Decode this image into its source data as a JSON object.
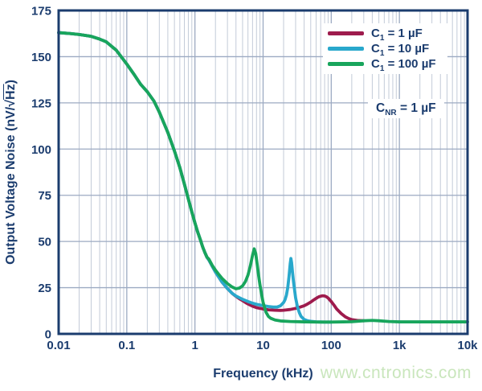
{
  "figure": {
    "background": "#ffffff",
    "frame_color": "#1b3c6e",
    "text_color": "#1b3c6e",
    "grid_major_color": "#9caac2",
    "grid_minor_color": "#c3cbd8"
  },
  "labels": {
    "y_pre": "Output Voltage Noise (nV/√",
    "y_ol": "Hz",
    "y_post": ")"
  },
  "legend": {
    "items": [
      {
        "sym": "C",
        "sub": "1",
        "rest": " = 1 µF",
        "color": "#9e1b4d"
      },
      {
        "sym": "C",
        "sub": "1",
        "rest": " = 10 µF",
        "color": "#29a8cc"
      },
      {
        "sym": "C",
        "sub": "1",
        "rest": " = 100 µF",
        "color": "#18a55c"
      }
    ]
  },
  "annotation": {
    "sym": "C",
    "sub": "NR",
    "rest": " = 1 µF"
  },
  "watermark": "www.cntronics.com",
  "chart_data": {
    "type": "line",
    "title": "",
    "xlabel": "Frequency (kHz)",
    "ylabel": "Output Voltage Noise (nV/√Hz)",
    "x_scale": "log",
    "xlim": [
      0.01,
      10000
    ],
    "ylim": [
      0,
      175
    ],
    "x_ticks": [
      "0.01",
      "0.1",
      "1",
      "10",
      "100",
      "1k",
      "10k"
    ],
    "x_tick_values": [
      0.01,
      0.1,
      1,
      10,
      100,
      1000,
      10000
    ],
    "y_ticks": [
      0,
      25,
      50,
      75,
      100,
      125,
      150,
      175
    ],
    "grid": true,
    "legend_position": "top-right",
    "series": [
      {
        "name": "C1 = 1 µF",
        "color": "#9e1b4d",
        "points": [
          [
            0.01,
            163
          ],
          [
            0.015,
            162.5
          ],
          [
            0.02,
            162
          ],
          [
            0.03,
            161
          ],
          [
            0.04,
            159.5
          ],
          [
            0.05,
            158
          ],
          [
            0.07,
            153.5
          ],
          [
            0.1,
            146
          ],
          [
            0.13,
            140
          ],
          [
            0.16,
            135
          ],
          [
            0.2,
            131
          ],
          [
            0.25,
            126
          ],
          [
            0.3,
            120
          ],
          [
            0.4,
            109
          ],
          [
            0.5,
            99
          ],
          [
            0.6,
            90
          ],
          [
            0.7,
            81
          ],
          [
            0.8,
            73
          ],
          [
            0.9,
            66
          ],
          [
            1,
            60
          ],
          [
            1.1,
            55
          ],
          [
            1.2,
            51
          ],
          [
            1.3,
            47
          ],
          [
            1.4,
            44
          ],
          [
            1.5,
            41.5
          ],
          [
            1.6,
            40
          ],
          [
            1.8,
            36.5
          ],
          [
            2,
            33.5
          ],
          [
            2.5,
            28
          ],
          [
            3,
            24.5
          ],
          [
            3.5,
            22
          ],
          [
            4,
            20.3
          ],
          [
            4.5,
            19
          ],
          [
            5,
            18
          ],
          [
            5.5,
            17
          ],
          [
            6,
            16.2
          ],
          [
            7,
            15
          ],
          [
            8,
            14.2
          ],
          [
            9,
            13.8
          ],
          [
            10,
            13.5
          ],
          [
            12,
            13
          ],
          [
            15,
            12.8
          ],
          [
            18,
            12.7
          ],
          [
            20,
            12.8
          ],
          [
            25,
            13.2
          ],
          [
            30,
            13.8
          ],
          [
            35,
            14.5
          ],
          [
            40,
            15.2
          ],
          [
            45,
            16.2
          ],
          [
            50,
            17.2
          ],
          [
            55,
            18.3
          ],
          [
            60,
            19.2
          ],
          [
            65,
            20
          ],
          [
            70,
            20.4
          ],
          [
            75,
            20.6
          ],
          [
            80,
            20.5
          ],
          [
            85,
            20.1
          ],
          [
            90,
            19.4
          ],
          [
            100,
            17.5
          ],
          [
            110,
            15.5
          ],
          [
            120,
            13.5
          ],
          [
            140,
            11
          ],
          [
            160,
            9.3
          ],
          [
            180,
            8.3
          ],
          [
            200,
            7.7
          ],
          [
            250,
            7.2
          ],
          [
            300,
            7.1
          ]
        ]
      },
      {
        "name": "C1 = 10 µF",
        "color": "#29a8cc",
        "points": [
          [
            0.01,
            163
          ],
          [
            0.015,
            162.5
          ],
          [
            0.02,
            162
          ],
          [
            0.03,
            161
          ],
          [
            0.04,
            159.5
          ],
          [
            0.05,
            158
          ],
          [
            0.07,
            153.5
          ],
          [
            0.1,
            146
          ],
          [
            0.13,
            140
          ],
          [
            0.16,
            135
          ],
          [
            0.2,
            131
          ],
          [
            0.25,
            126
          ],
          [
            0.3,
            120
          ],
          [
            0.4,
            109
          ],
          [
            0.5,
            99
          ],
          [
            0.6,
            90
          ],
          [
            0.7,
            81
          ],
          [
            0.8,
            73
          ],
          [
            0.9,
            66
          ],
          [
            1,
            60
          ],
          [
            1.1,
            55
          ],
          [
            1.2,
            51
          ],
          [
            1.3,
            47
          ],
          [
            1.4,
            44
          ],
          [
            1.5,
            41.5
          ],
          [
            1.6,
            40
          ],
          [
            1.8,
            36.5
          ],
          [
            2,
            33.5
          ],
          [
            2.5,
            28
          ],
          [
            3,
            24.5
          ],
          [
            3.5,
            22
          ],
          [
            4,
            20.5
          ],
          [
            5,
            18.7
          ],
          [
            6,
            17.5
          ],
          [
            7,
            16.6
          ],
          [
            8,
            16
          ],
          [
            10,
            15.3
          ],
          [
            12,
            14.8
          ],
          [
            14,
            14.5
          ],
          [
            16,
            14.5
          ],
          [
            18,
            15.2
          ],
          [
            20,
            17
          ],
          [
            21,
            18.5
          ],
          [
            22,
            21
          ],
          [
            23,
            25
          ],
          [
            24,
            31
          ],
          [
            25,
            38
          ],
          [
            25.6,
            40.8
          ],
          [
            26.2,
            38.5
          ],
          [
            27,
            33.5
          ],
          [
            28,
            28
          ],
          [
            30,
            19.5
          ],
          [
            32,
            14.5
          ],
          [
            34,
            11.5
          ],
          [
            36,
            9.5
          ],
          [
            40,
            7.8
          ],
          [
            45,
            7.1
          ],
          [
            50,
            6.8
          ],
          [
            60,
            6.5
          ],
          [
            80,
            6.4
          ],
          [
            100,
            6.4
          ]
        ]
      },
      {
        "name": "C1 = 100 µF",
        "color": "#18a55c",
        "points": [
          [
            0.01,
            163
          ],
          [
            0.015,
            162.5
          ],
          [
            0.02,
            162
          ],
          [
            0.03,
            161
          ],
          [
            0.04,
            159.5
          ],
          [
            0.05,
            158
          ],
          [
            0.07,
            153.5
          ],
          [
            0.1,
            146
          ],
          [
            0.13,
            140
          ],
          [
            0.16,
            135
          ],
          [
            0.2,
            131
          ],
          [
            0.25,
            126
          ],
          [
            0.3,
            120
          ],
          [
            0.4,
            109
          ],
          [
            0.5,
            99
          ],
          [
            0.6,
            90
          ],
          [
            0.7,
            81
          ],
          [
            0.8,
            73
          ],
          [
            0.9,
            66
          ],
          [
            1,
            60
          ],
          [
            1.1,
            55
          ],
          [
            1.2,
            51
          ],
          [
            1.3,
            47
          ],
          [
            1.4,
            44
          ],
          [
            1.5,
            41.5
          ],
          [
            1.6,
            40.5
          ],
          [
            1.8,
            37
          ],
          [
            2,
            34.5
          ],
          [
            2.2,
            32.5
          ],
          [
            2.5,
            30
          ],
          [
            3,
            27.2
          ],
          [
            3.5,
            25.4
          ],
          [
            4,
            24.4
          ],
          [
            4.5,
            24.8
          ],
          [
            5,
            26
          ],
          [
            5.5,
            28.3
          ],
          [
            6,
            31.8
          ],
          [
            6.5,
            36.8
          ],
          [
            7,
            42.5
          ],
          [
            7.4,
            46
          ],
          [
            7.8,
            43.5
          ],
          [
            8.2,
            37.5
          ],
          [
            8.6,
            31.5
          ],
          [
            9,
            26.5
          ],
          [
            9.5,
            21.5
          ],
          [
            10,
            17
          ],
          [
            11,
            11.8
          ],
          [
            12,
            9.4
          ],
          [
            13,
            8.4
          ],
          [
            15,
            7.5
          ],
          [
            18,
            7
          ],
          [
            25,
            6.7
          ],
          [
            40,
            6.5
          ],
          [
            70,
            6.4
          ],
          [
            100,
            6.4
          ],
          [
            150,
            6.5
          ],
          [
            200,
            6.6
          ],
          [
            300,
            7.1
          ],
          [
            400,
            7.3
          ],
          [
            500,
            7.1
          ],
          [
            700,
            6.7
          ],
          [
            1000,
            6.5
          ],
          [
            2000,
            6.5
          ],
          [
            5000,
            6.5
          ],
          [
            10000,
            6.5
          ]
        ]
      }
    ]
  }
}
